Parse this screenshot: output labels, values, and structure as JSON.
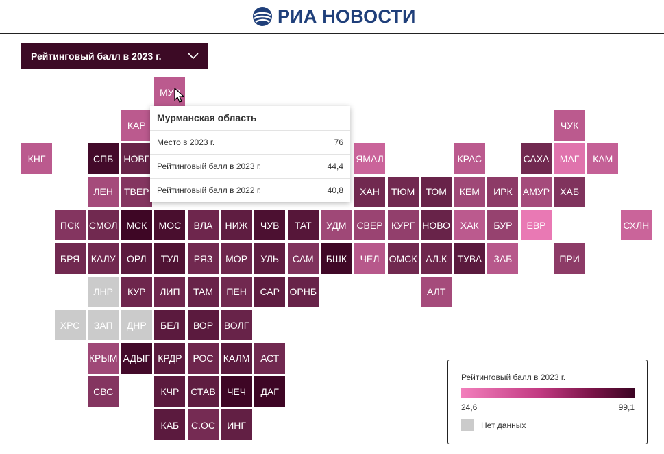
{
  "header": {
    "brand": "РИА НОВОСТИ",
    "logo_icon": "ria-globe-icon"
  },
  "dropdown": {
    "selected": "Рейтинговый балл в 2023 г."
  },
  "colors": {
    "header_text": "#1f3f7a",
    "dropdown_bg": "#3c0a25",
    "scale_low": "#f27fbc",
    "scale_high": "#3a0422",
    "no_data": "#cbcbcb"
  },
  "tooltip": {
    "title": "Мурманская область",
    "rows": [
      {
        "label": "Место в 2023 г.",
        "value": "76"
      },
      {
        "label": "Рейтинговый балл в 2023 г.",
        "value": "44,4"
      },
      {
        "label": "Рейтинговый балл в 2022 г.",
        "value": "40,8"
      }
    ]
  },
  "legend": {
    "title": "Рейтинговый балл в 2023 г.",
    "min": "24,6",
    "max": "99,1",
    "no_data_label": "Нет данных"
  },
  "regions": [
    {
      "label": "МУР",
      "col": 4,
      "row": 0,
      "t": 0.3
    },
    {
      "label": "КАР",
      "col": 3,
      "row": 1,
      "t": 0.3
    },
    {
      "label": "ЧУК",
      "col": 16,
      "row": 1,
      "t": 0.3
    },
    {
      "label": "КНГ",
      "col": 0,
      "row": 2,
      "t": 0.3
    },
    {
      "label": "СПБ",
      "col": 2,
      "row": 2,
      "t": 0.95
    },
    {
      "label": "НОВГ",
      "col": 3,
      "row": 2,
      "t": 0.75
    },
    {
      "label": "ЯМАЛ",
      "col": 10,
      "row": 2,
      "t": 0.22
    },
    {
      "label": "КРАС",
      "col": 13,
      "row": 2,
      "t": 0.3
    },
    {
      "label": "САХА",
      "col": 15,
      "row": 2,
      "t": 0.7
    },
    {
      "label": "МАГ",
      "col": 16,
      "row": 2,
      "t": 0.1
    },
    {
      "label": "КАМ",
      "col": 17,
      "row": 2,
      "t": 0.25
    },
    {
      "label": "ЛЕН",
      "col": 2,
      "row": 3,
      "t": 0.42
    },
    {
      "label": "ТВЕР",
      "col": 3,
      "row": 3,
      "t": 0.6
    },
    {
      "label": "ХАН",
      "col": 10,
      "row": 3,
      "t": 0.7
    },
    {
      "label": "ТЮМ",
      "col": 11,
      "row": 3,
      "t": 0.7
    },
    {
      "label": "ТОМ",
      "col": 12,
      "row": 3,
      "t": 0.75
    },
    {
      "label": "КЕМ",
      "col": 13,
      "row": 3,
      "t": 0.45
    },
    {
      "label": "ИРК",
      "col": 14,
      "row": 3,
      "t": 0.55
    },
    {
      "label": "АМУР",
      "col": 15,
      "row": 3,
      "t": 0.42
    },
    {
      "label": "ХАБ",
      "col": 16,
      "row": 3,
      "t": 0.62
    },
    {
      "label": "ПСК",
      "col": 1,
      "row": 4,
      "t": 0.6
    },
    {
      "label": "СМОЛ",
      "col": 2,
      "row": 4,
      "t": 0.7
    },
    {
      "label": "МСК",
      "col": 3,
      "row": 4,
      "t": 0.98
    },
    {
      "label": "МОС",
      "col": 4,
      "row": 4,
      "t": 0.92
    },
    {
      "label": "ВЛА",
      "col": 5,
      "row": 4,
      "t": 0.72
    },
    {
      "label": "НИЖ",
      "col": 6,
      "row": 4,
      "t": 0.8
    },
    {
      "label": "ЧУВ",
      "col": 7,
      "row": 4,
      "t": 0.9
    },
    {
      "label": "ТАТ",
      "col": 8,
      "row": 4,
      "t": 0.85
    },
    {
      "label": "УДМ",
      "col": 9,
      "row": 4,
      "t": 0.45
    },
    {
      "label": "СВЕР",
      "col": 10,
      "row": 4,
      "t": 0.48
    },
    {
      "label": "КУРГ",
      "col": 11,
      "row": 4,
      "t": 0.52
    },
    {
      "label": "НОВО",
      "col": 12,
      "row": 4,
      "t": 0.75
    },
    {
      "label": "ХАК",
      "col": 13,
      "row": 4,
      "t": 0.3
    },
    {
      "label": "БУР",
      "col": 14,
      "row": 4,
      "t": 0.5
    },
    {
      "label": "ЕВР",
      "col": 15,
      "row": 4,
      "t": 0.05
    },
    {
      "label": "СХЛН",
      "col": 18,
      "row": 4,
      "t": 0.22
    },
    {
      "label": "БРЯ",
      "col": 1,
      "row": 5,
      "t": 0.7
    },
    {
      "label": "КАЛУ",
      "col": 2,
      "row": 5,
      "t": 0.7
    },
    {
      "label": "ОРЛ",
      "col": 3,
      "row": 5,
      "t": 0.82
    },
    {
      "label": "ТУЛ",
      "col": 4,
      "row": 5,
      "t": 0.88
    },
    {
      "label": "РЯЗ",
      "col": 5,
      "row": 5,
      "t": 0.7
    },
    {
      "label": "МОР",
      "col": 6,
      "row": 5,
      "t": 0.72
    },
    {
      "label": "УЛЬ",
      "col": 7,
      "row": 5,
      "t": 0.8
    },
    {
      "label": "САМ",
      "col": 8,
      "row": 5,
      "t": 0.62
    },
    {
      "label": "БШК",
      "col": 9,
      "row": 5,
      "t": 0.97
    },
    {
      "label": "ЧЕЛ",
      "col": 10,
      "row": 5,
      "t": 0.32
    },
    {
      "label": "ОМСК",
      "col": 11,
      "row": 5,
      "t": 0.7
    },
    {
      "label": "АЛ.К",
      "col": 12,
      "row": 5,
      "t": 0.72
    },
    {
      "label": "ТУВА",
      "col": 13,
      "row": 5,
      "t": 0.82
    },
    {
      "label": "ЗАБ",
      "col": 14,
      "row": 5,
      "t": 0.32
    },
    {
      "label": "ПРИ",
      "col": 16,
      "row": 5,
      "t": 0.55
    },
    {
      "label": "ЛНР",
      "col": 2,
      "row": 6,
      "nodata": true
    },
    {
      "label": "КУР",
      "col": 3,
      "row": 6,
      "t": 0.72
    },
    {
      "label": "ЛИП",
      "col": 4,
      "row": 6,
      "t": 0.72
    },
    {
      "label": "ТАМ",
      "col": 5,
      "row": 6,
      "t": 0.75
    },
    {
      "label": "ПЕН",
      "col": 6,
      "row": 6,
      "t": 0.7
    },
    {
      "label": "САР",
      "col": 7,
      "row": 6,
      "t": 0.8
    },
    {
      "label": "ОРНБ",
      "col": 8,
      "row": 6,
      "t": 0.75
    },
    {
      "label": "АЛТ",
      "col": 12,
      "row": 6,
      "t": 0.42
    },
    {
      "label": "ХРС",
      "col": 1,
      "row": 7,
      "nodata": true
    },
    {
      "label": "ЗАП",
      "col": 2,
      "row": 7,
      "nodata": true
    },
    {
      "label": "ДНР",
      "col": 3,
      "row": 7,
      "nodata": true
    },
    {
      "label": "БЕЛ",
      "col": 4,
      "row": 7,
      "t": 0.82
    },
    {
      "label": "ВОР",
      "col": 5,
      "row": 7,
      "t": 0.82
    },
    {
      "label": "ВОЛГ",
      "col": 6,
      "row": 7,
      "t": 0.75
    },
    {
      "label": "КРЫМ",
      "col": 2,
      "row": 8,
      "t": 0.45
    },
    {
      "label": "АДЫГ",
      "col": 3,
      "row": 8,
      "t": 0.95
    },
    {
      "label": "КРДР",
      "col": 4,
      "row": 8,
      "t": 0.82
    },
    {
      "label": "РОС",
      "col": 5,
      "row": 8,
      "t": 0.72
    },
    {
      "label": "КАЛМ",
      "col": 6,
      "row": 8,
      "t": 0.82
    },
    {
      "label": "АСТ",
      "col": 7,
      "row": 8,
      "t": 0.7
    },
    {
      "label": "СВС",
      "col": 2,
      "row": 9,
      "t": 0.6
    },
    {
      "label": "КЧР",
      "col": 4,
      "row": 9,
      "t": 0.82
    },
    {
      "label": "СТАВ",
      "col": 5,
      "row": 9,
      "t": 0.8
    },
    {
      "label": "ЧЕЧ",
      "col": 6,
      "row": 9,
      "t": 0.98
    },
    {
      "label": "ДАГ",
      "col": 7,
      "row": 9,
      "t": 0.98
    },
    {
      "label": "КАБ",
      "col": 4,
      "row": 10,
      "t": 0.82
    },
    {
      "label": "С.ОС",
      "col": 5,
      "row": 10,
      "t": 0.68
    },
    {
      "label": "ИНГ",
      "col": 6,
      "row": 10,
      "t": 0.78
    }
  ]
}
